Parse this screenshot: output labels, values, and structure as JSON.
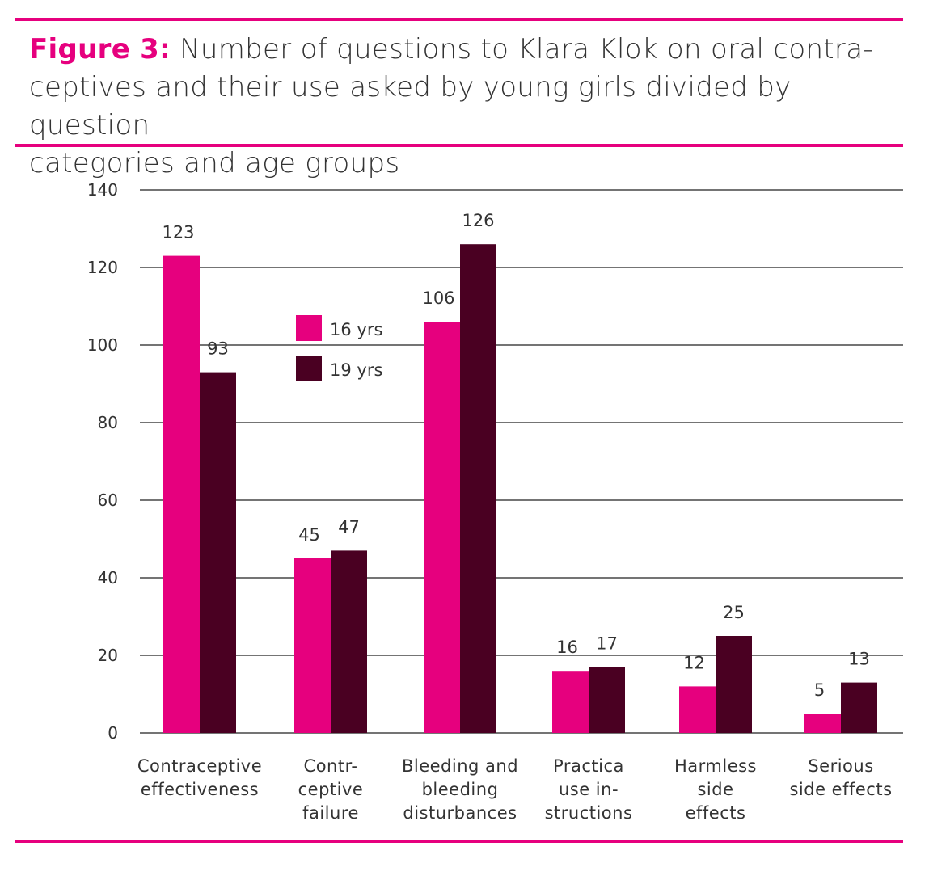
{
  "figure_label": "Figure 3:",
  "title": "Number of questions to Klara Klok on oral contra-ceptives and their use asked by young girls  divided by question categories and age groups",
  "title_lines": [
    "Number of questions to Klara Klok on oral contra-",
    "ceptives and their use asked by young girls  divided by question",
    "categories and age groups"
  ],
  "colors": {
    "accent": "#e6007e",
    "series_16": "#e6007e",
    "series_19": "#4a0022"
  },
  "chart_data": {
    "type": "bar",
    "categories": [
      [
        "Contraceptive",
        "effectiveness"
      ],
      [
        "Contr-",
        "ceptive",
        "failure"
      ],
      [
        "Bleeding and",
        "bleeding",
        "disturbances"
      ],
      [
        "Practica",
        "use in-",
        "structions"
      ],
      [
        "Harmless",
        "side",
        "effects"
      ],
      [
        "Serious",
        "side effects"
      ]
    ],
    "series": [
      {
        "name": "16 yrs",
        "values": [
          123,
          45,
          106,
          16,
          12,
          5
        ]
      },
      {
        "name": "19 yrs",
        "values": [
          93,
          47,
          126,
          17,
          25,
          13
        ]
      }
    ],
    "ylim": [
      0,
      140
    ],
    "yticks": [
      0,
      20,
      40,
      60,
      80,
      100,
      120,
      140
    ],
    "grid": true,
    "legend": "upper-center",
    "xlabel": "",
    "ylabel": ""
  }
}
